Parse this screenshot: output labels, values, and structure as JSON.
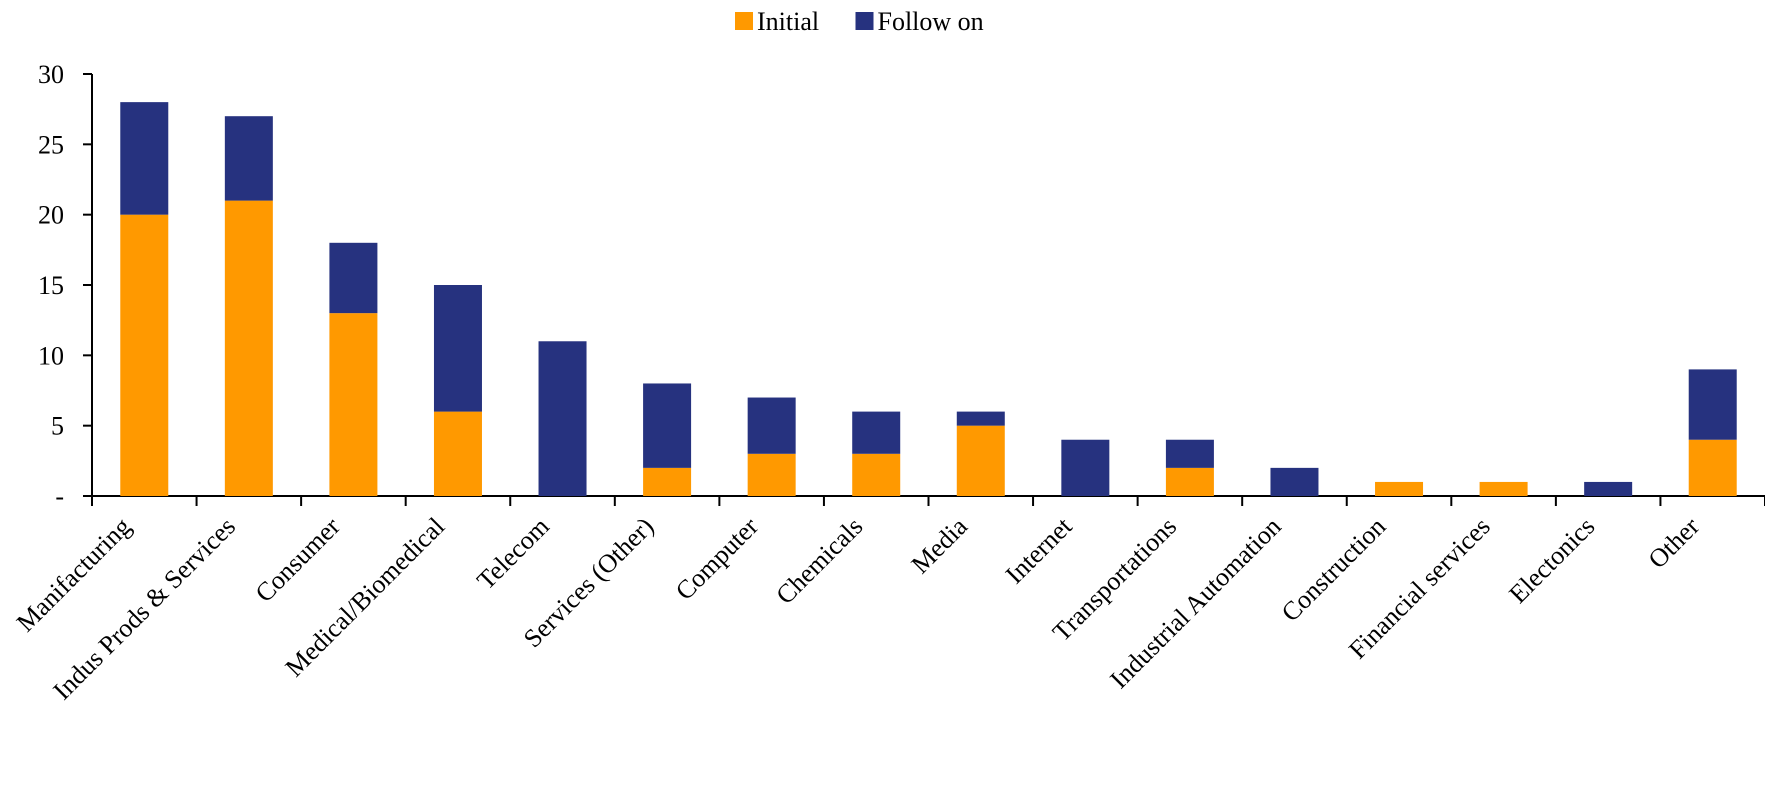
{
  "chart_data": {
    "type": "bar",
    "stacked": true,
    "categories": [
      "Manifacturing",
      "Indus Prods & Services",
      "Consumer",
      "Medical/Biomedical",
      "Telecom",
      "Services (Other)",
      "Computer",
      "Chemicals",
      "Media",
      "Internet",
      "Transportations",
      "Industrial Automation",
      "Construction",
      "Financial services",
      "Electonics",
      "Other"
    ],
    "series": [
      {
        "name": "Initial",
        "color": "#FF9900",
        "values": [
          20,
          21,
          13,
          6,
          0,
          2,
          3,
          3,
          5,
          0,
          2,
          0,
          1,
          1,
          0,
          4
        ]
      },
      {
        "name": "Follow on",
        "color": "#26327F",
        "values": [
          8,
          6,
          5,
          9,
          11,
          6,
          4,
          3,
          1,
          4,
          2,
          2,
          0,
          0,
          1,
          5
        ]
      }
    ],
    "ylim": [
      0,
      30
    ],
    "yticks": [
      0,
      5,
      10,
      15,
      20,
      25,
      30
    ],
    "ytick_labels": [
      "-",
      "5",
      "10",
      "15",
      "20",
      "25",
      "30"
    ],
    "grid": false,
    "legend_position": "top-center"
  }
}
